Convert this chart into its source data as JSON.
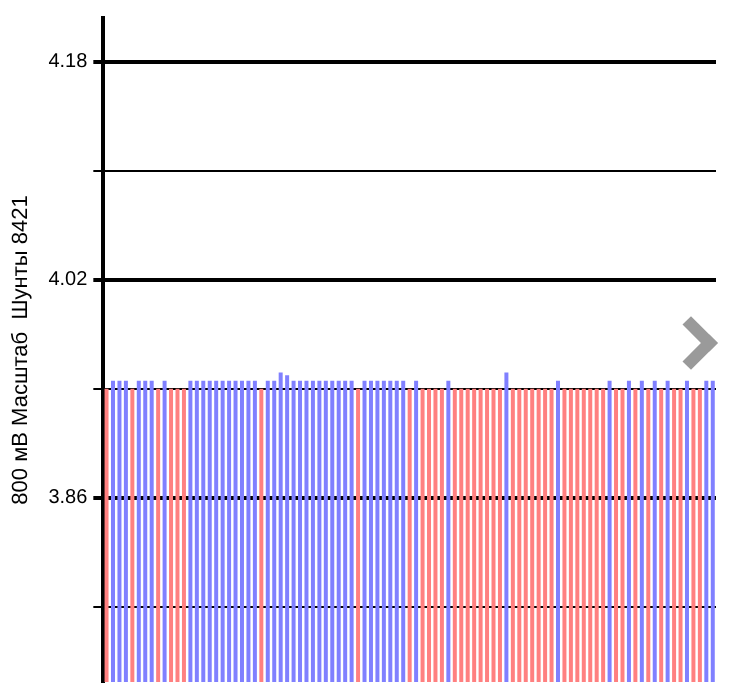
{
  "chart_data": {
    "type": "bar",
    "ylabel": "800 мВ Масштаб  Шунты 8421",
    "categories": [
      null,
      null,
      null,
      null,
      null,
      null,
      null,
      null,
      null,
      null,
      null,
      null,
      null,
      null,
      null,
      null,
      null,
      null,
      null,
      null,
      null,
      null,
      null,
      null,
      null,
      null,
      null,
      null,
      null,
      null,
      null,
      null,
      null,
      null,
      null,
      null,
      null,
      null,
      null,
      null,
      null,
      null,
      null,
      null,
      null,
      null,
      null,
      null,
      null,
      null,
      null,
      null,
      null,
      null,
      null,
      null,
      null,
      null,
      null,
      null,
      null,
      null,
      null,
      null,
      null,
      null,
      null,
      null,
      null,
      null,
      null,
      null,
      null,
      null,
      null,
      null,
      null,
      null,
      null,
      null,
      null,
      null,
      null,
      null,
      null,
      null,
      null,
      null,
      null,
      null,
      null,
      null,
      null,
      null,
      null
    ],
    "values": [
      3.94,
      3.946,
      3.946,
      3.946,
      3.94,
      3.946,
      3.946,
      3.946,
      3.94,
      3.946,
      3.94,
      3.94,
      3.94,
      3.946,
      3.946,
      3.946,
      3.946,
      3.946,
      3.946,
      3.946,
      3.946,
      3.946,
      3.946,
      3.946,
      3.94,
      3.946,
      3.946,
      3.952,
      3.95,
      3.946,
      3.946,
      3.946,
      3.946,
      3.946,
      3.946,
      3.946,
      3.946,
      3.946,
      3.946,
      3.94,
      3.946,
      3.946,
      3.946,
      3.946,
      3.946,
      3.946,
      3.946,
      3.94,
      3.946,
      3.94,
      3.94,
      3.94,
      3.94,
      3.946,
      3.94,
      3.94,
      3.94,
      3.94,
      3.94,
      3.94,
      3.94,
      3.94,
      3.952,
      3.94,
      3.94,
      3.94,
      3.94,
      3.94,
      3.94,
      3.94,
      3.946,
      3.94,
      3.94,
      3.94,
      3.94,
      3.94,
      3.94,
      3.94,
      3.946,
      3.94,
      3.94,
      3.946,
      3.94,
      3.946,
      3.94,
      3.946,
      3.94,
      3.946,
      3.94,
      3.94,
      3.946,
      3.94,
      3.94,
      3.946,
      3.946
    ],
    "colors": [
      "#ff8080",
      "#8080ff",
      "#8080ff",
      "#8080ff",
      "#ff8080",
      "#8080ff",
      "#8080ff",
      "#8080ff",
      "#ff8080",
      "#8080ff",
      "#ff8080",
      "#ff8080",
      "#ff8080",
      "#8080ff",
      "#8080ff",
      "#8080ff",
      "#8080ff",
      "#8080ff",
      "#8080ff",
      "#8080ff",
      "#8080ff",
      "#8080ff",
      "#8080ff",
      "#8080ff",
      "#ff8080",
      "#8080ff",
      "#8080ff",
      "#8080ff",
      "#8080ff",
      "#8080ff",
      "#8080ff",
      "#8080ff",
      "#8080ff",
      "#8080ff",
      "#8080ff",
      "#8080ff",
      "#8080ff",
      "#8080ff",
      "#8080ff",
      "#ff8080",
      "#8080ff",
      "#8080ff",
      "#8080ff",
      "#8080ff",
      "#8080ff",
      "#8080ff",
      "#8080ff",
      "#ff8080",
      "#8080ff",
      "#ff8080",
      "#ff8080",
      "#ff8080",
      "#ff8080",
      "#8080ff",
      "#ff8080",
      "#ff8080",
      "#ff8080",
      "#ff8080",
      "#ff8080",
      "#ff8080",
      "#ff8080",
      "#ff8080",
      "#8080ff",
      "#ff8080",
      "#ff8080",
      "#ff8080",
      "#ff8080",
      "#ff8080",
      "#ff8080",
      "#ff8080",
      "#8080ff",
      "#ff8080",
      "#ff8080",
      "#ff8080",
      "#ff8080",
      "#ff8080",
      "#ff8080",
      "#ff8080",
      "#8080ff",
      "#ff8080",
      "#ff8080",
      "#8080ff",
      "#ff8080",
      "#8080ff",
      "#ff8080",
      "#8080ff",
      "#ff8080",
      "#8080ff",
      "#ff8080",
      "#ff8080",
      "#8080ff",
      "#ff8080",
      "#ff8080",
      "#8080ff",
      "#8080ff"
    ],
    "ylim": [
      3.725,
      4.212
    ],
    "yticks": [
      {
        "value": 3.78,
        "label": null
      },
      3.86,
      {
        "value": 3.94,
        "label": null
      },
      4.02,
      {
        "value": 4.1,
        "label": null
      },
      4.18
    ],
    "grid": true,
    "tick_labels": "y"
  }
}
